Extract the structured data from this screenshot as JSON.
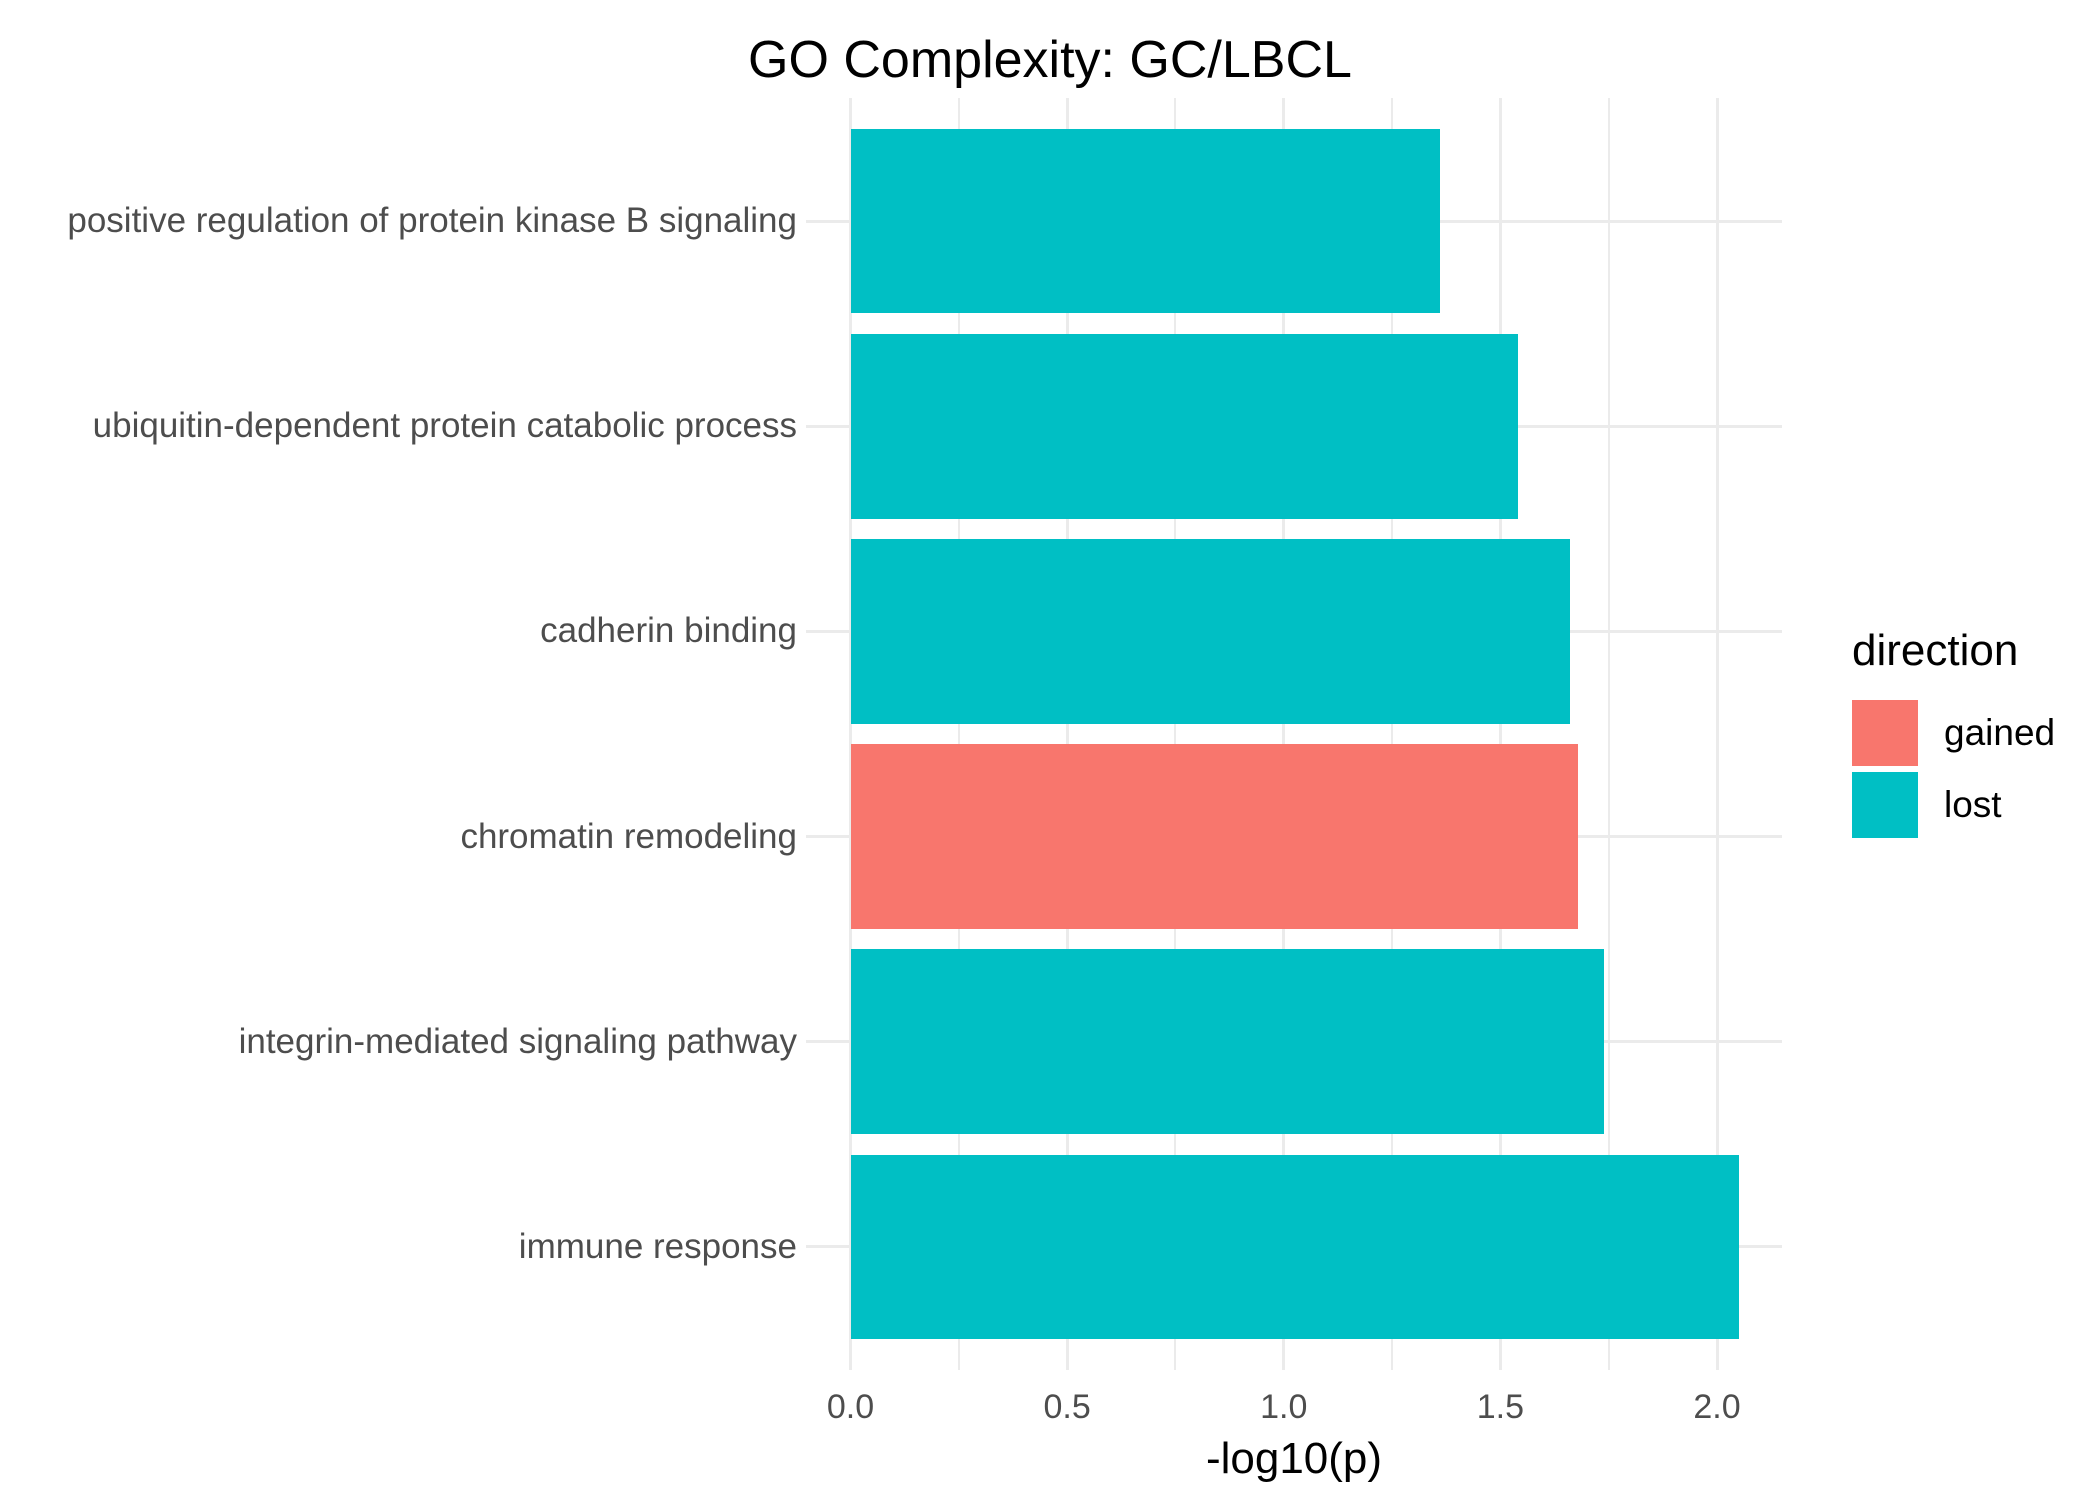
{
  "title": "GO Complexity: GC/LBCL",
  "chart_data": {
    "type": "bar",
    "orientation": "horizontal",
    "title": "GO Complexity: GC/LBCL",
    "xlabel": "-log10(p)",
    "ylabel": "",
    "xlim": [
      -0.1,
      2.15
    ],
    "grid": true,
    "x_major_ticks": [
      0.0,
      0.5,
      1.0,
      1.5,
      2.0
    ],
    "x_tick_labels": [
      "0.0",
      "0.5",
      "1.0",
      "1.5",
      "2.0"
    ],
    "x_minor_ticks": [
      0.25,
      0.75,
      1.25,
      1.75
    ],
    "bars": [
      {
        "label": "positive regulation of protein kinase B signaling",
        "value": 1.36,
        "direction": "lost"
      },
      {
        "label": "ubiquitin-dependent protein catabolic process",
        "value": 1.54,
        "direction": "lost"
      },
      {
        "label": "cadherin binding",
        "value": 1.66,
        "direction": "lost"
      },
      {
        "label": "chromatin remodeling",
        "value": 1.68,
        "direction": "gained"
      },
      {
        "label": "integrin-mediated signaling pathway",
        "value": 1.74,
        "direction": "lost"
      },
      {
        "label": "immune response",
        "value": 2.05,
        "direction": "lost"
      }
    ],
    "legend": {
      "title": "direction",
      "position": "right",
      "entries": [
        {
          "label": "gained",
          "color": "#F8766D"
        },
        {
          "label": "lost",
          "color": "#00BFC4"
        }
      ]
    },
    "colors": {
      "gained": "#F8766D",
      "lost": "#00BFC4",
      "gridline": "#ebebeb",
      "axis_text": "#4d4d4d",
      "title_text": "#000000"
    }
  }
}
